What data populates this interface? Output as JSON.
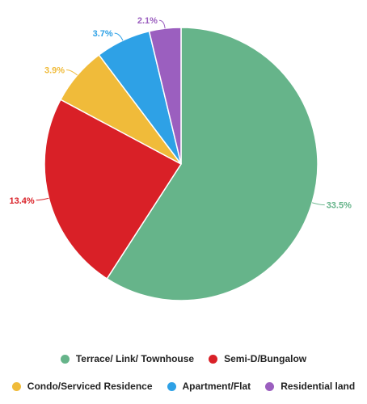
{
  "chart_data": {
    "type": "pie",
    "title": "",
    "start_angle_deg": 0,
    "direction": "clockwise",
    "legend_position": "bottom",
    "series": [
      {
        "name": "Terrace/ Link/ Townhouse",
        "label": "33.5%",
        "share": 0.599,
        "color": "#66b48a"
      },
      {
        "name": "Semi-D/Bungalow",
        "label": "13.4%",
        "share": 0.24,
        "color": "#d92027"
      },
      {
        "name": "Condo/Serviced Residence",
        "label": "3.9%",
        "share": 0.07,
        "color": "#f0bb3a"
      },
      {
        "name": "Apartment/Flat",
        "label": "3.7%",
        "share": 0.066,
        "color": "#2ea1e6"
      },
      {
        "name": "Residential land",
        "label": "2.1%",
        "share": 0.038,
        "color": "#9b5fbf"
      }
    ]
  }
}
